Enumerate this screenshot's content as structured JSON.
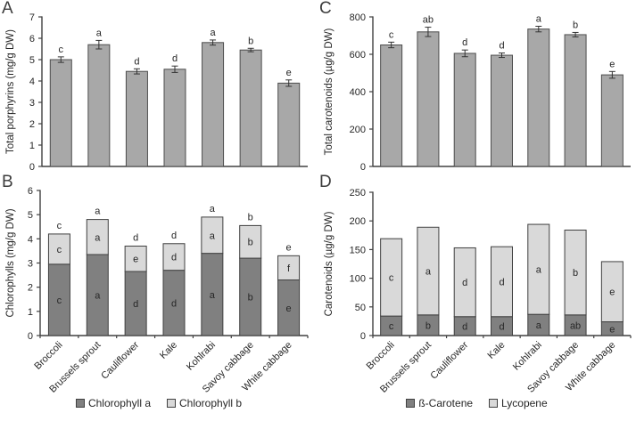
{
  "figure": {
    "background": "#ffffff",
    "categories": [
      "Broccoli",
      "Brussels sprout",
      "Cauliflower",
      "Kale",
      "Kohlrabi",
      "Savoy cabbage",
      "White cabbage"
    ],
    "legends": [
      {
        "for_panel": "B",
        "entries": [
          {
            "label": "Chlorophyll a",
            "color": "#808080"
          },
          {
            "label": "Chlorophyll b",
            "color": "#d9d9d9"
          }
        ]
      },
      {
        "for_panel": "D",
        "entries": [
          {
            "label": "ß-Carotene",
            "color": "#808080"
          },
          {
            "label": "Lycopene",
            "color": "#d9d9d9"
          }
        ]
      }
    ],
    "colors": {
      "single_bar_fill": "#a8a8a8",
      "single_bar_stroke": "#4d4d4d",
      "stacked_dark_fill": "#808080",
      "stacked_light_fill": "#d9d9d9",
      "stacked_stroke": "#404040",
      "axis": "#404040",
      "text": "#262626"
    }
  },
  "chart_data": [
    {
      "panel": "A",
      "type": "bar",
      "title": "",
      "xlabel": "",
      "ylabel": "Total porphyrins (mg/g DW)",
      "ylim": [
        0,
        7
      ],
      "yticks": [
        0,
        1,
        2,
        3,
        4,
        5,
        6,
        7
      ],
      "grid": false,
      "categories": [
        "Broccoli",
        "Brussels sprout",
        "Cauliflower",
        "Kale",
        "Kohlrabi",
        "Savoy cabbage",
        "White cabbage"
      ],
      "values": [
        5.0,
        5.7,
        4.45,
        4.55,
        5.8,
        5.45,
        3.9
      ],
      "errors": [
        0.13,
        0.2,
        0.12,
        0.15,
        0.12,
        0.08,
        0.15
      ],
      "sig_letters": [
        "c",
        "a",
        "d",
        "d",
        "a",
        "b",
        "e"
      ],
      "bar_color": "#a8a8a8",
      "show_x_labels": false
    },
    {
      "panel": "B",
      "type": "stacked-bar",
      "title": "",
      "xlabel": "",
      "ylabel": "Chlorophylls (mg/g DW)",
      "ylim": [
        0,
        6
      ],
      "yticks": [
        0,
        1,
        2,
        3,
        4,
        5,
        6
      ],
      "grid": false,
      "categories": [
        "Broccoli",
        "Brussels sprout",
        "Cauliflower",
        "Kale",
        "Kohlrabi",
        "Savoy cabbage",
        "White cabbage"
      ],
      "series": [
        {
          "name": "Chlorophyll a",
          "color": "#808080",
          "values": [
            2.95,
            3.35,
            2.65,
            2.7,
            3.4,
            3.2,
            2.3
          ],
          "letters": [
            "c",
            "a",
            "d",
            "d",
            "a",
            "b",
            "e"
          ]
        },
        {
          "name": "Chlorophyll b",
          "color": "#d9d9d9",
          "values": [
            1.25,
            1.45,
            1.05,
            1.1,
            1.5,
            1.35,
            1.0
          ],
          "letters": [
            "c",
            "a",
            "e",
            "d",
            "a",
            "b",
            "f"
          ]
        }
      ],
      "totals": [
        4.2,
        4.8,
        3.7,
        3.8,
        4.9,
        4.55,
        3.3
      ],
      "totals_letters": [
        "c",
        "a",
        "d",
        "d",
        "a",
        "b",
        "e"
      ],
      "show_x_labels": true
    },
    {
      "panel": "C",
      "type": "bar",
      "title": "",
      "xlabel": "",
      "ylabel": "Total carotenoids (µg/g DW)",
      "ylim": [
        0,
        800
      ],
      "yticks": [
        0,
        200,
        400,
        600,
        800
      ],
      "grid": false,
      "categories": [
        "Broccoli",
        "Brussels sprout",
        "Cauliflower",
        "Kale",
        "Kohlrabi",
        "Savoy cabbage",
        "White cabbage"
      ],
      "values": [
        650,
        720,
        605,
        595,
        735,
        705,
        490
      ],
      "errors": [
        15,
        25,
        18,
        12,
        15,
        12,
        18
      ],
      "sig_letters": [
        "c",
        "ab",
        "d",
        "d",
        "a",
        "b",
        "e"
      ],
      "bar_color": "#a8a8a8",
      "show_x_labels": false
    },
    {
      "panel": "D",
      "type": "stacked-bar",
      "title": "",
      "xlabel": "",
      "ylabel": "Carotenoids (µg/g DW)",
      "ylim": [
        0,
        250
      ],
      "yticks": [
        0,
        50,
        100,
        150,
        200,
        250
      ],
      "grid": false,
      "categories": [
        "Broccoli",
        "Brussels sprout",
        "Cauliflower",
        "Kale",
        "Kohlrabi",
        "Savoy cabbage",
        "White cabbage"
      ],
      "series": [
        {
          "name": "ß-Carotene",
          "color": "#808080",
          "values": [
            34,
            36,
            33,
            33,
            37,
            36,
            24
          ],
          "letters": [
            "c",
            "b",
            "d",
            "d",
            "a",
            "ab",
            "e"
          ]
        },
        {
          "name": "Lycopene",
          "color": "#d9d9d9",
          "values": [
            135,
            153,
            120,
            122,
            157,
            148,
            105
          ],
          "letters": [
            "c",
            "a",
            "d",
            "d",
            "a",
            "b",
            "e"
          ]
        }
      ],
      "totals": [
        169,
        189,
        153,
        155,
        194,
        184,
        129
      ],
      "show_x_labels": true
    }
  ]
}
